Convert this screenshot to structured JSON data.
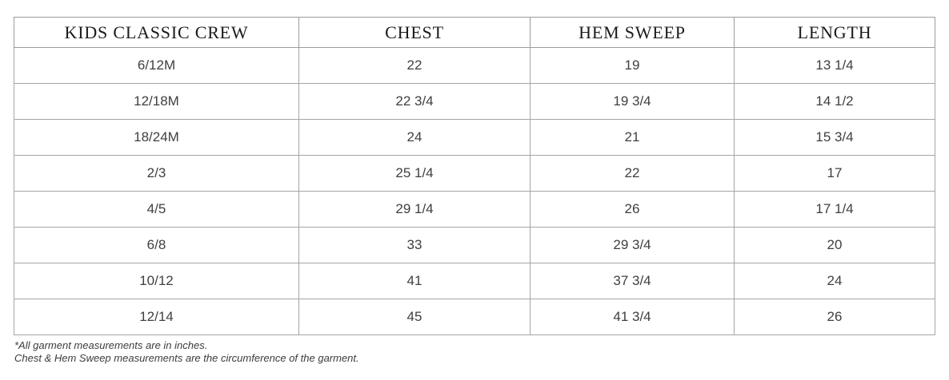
{
  "chart_data": {
    "type": "table",
    "title": "KIDS CLASSIC CREW",
    "columns": [
      "KIDS CLASSIC CREW",
      "CHEST",
      "HEM SWEEP",
      "LENGTH"
    ],
    "rows": [
      [
        "6/12M",
        "22",
        "19",
        "13 1/4"
      ],
      [
        "12/18M",
        "22 3/4",
        "19 3/4",
        "14 1/2"
      ],
      [
        "18/24M",
        "24",
        "21",
        "15 3/4"
      ],
      [
        "2/3",
        "25 1/4",
        "22",
        "17"
      ],
      [
        "4/5",
        "29 1/4",
        "26",
        "17 1/4"
      ],
      [
        "6/8",
        "33",
        "29 3/4",
        "20"
      ],
      [
        "10/12",
        "41",
        "37 3/4",
        "24"
      ],
      [
        "12/14",
        "45",
        "41 3/4",
        "26"
      ]
    ],
    "units": "inches",
    "footnotes": [
      "*All garment measurements are in inches.",
      "Chest & Hem Sweep measurements are the circumference of the garment."
    ]
  },
  "colors": {
    "background": "#ffffff",
    "outer_border": "#8d8d8d",
    "inner_border": "#a5a5a5",
    "header_text": "#1b1b1b",
    "body_text": "#3f3f3f",
    "footnote_text": "#3c3c3c"
  }
}
